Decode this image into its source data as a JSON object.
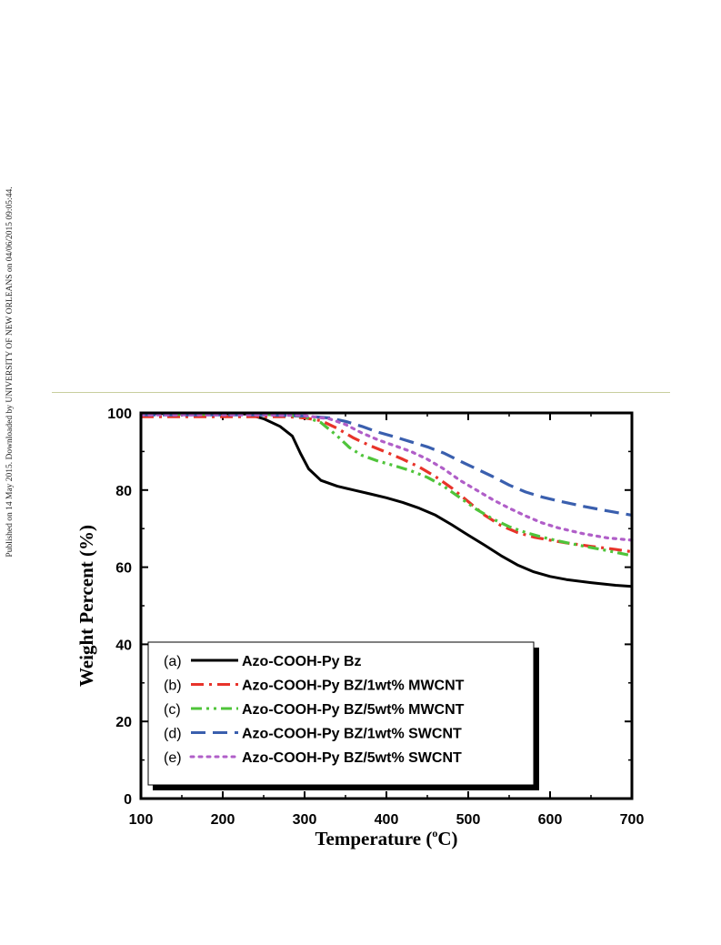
{
  "side_note": "Published on 14 May 2015. Downloaded by UNIVERSITY OF NEW ORLEANS on 04/06/2015 09:05:44.",
  "chart_data": {
    "type": "line",
    "xlabel_pre": "Temperature (",
    "xlabel_sup": "o",
    "xlabel_post": "C)",
    "ylabel": "Weight Percent (%)",
    "xlim": [
      100,
      700
    ],
    "ylim": [
      0,
      100
    ],
    "xticks": [
      100,
      200,
      300,
      400,
      500,
      600,
      700
    ],
    "yticks": [
      0,
      20,
      40,
      60,
      80,
      100
    ],
    "grid": false,
    "legend_position": "bottom-left",
    "series": [
      {
        "tag": "(a)",
        "name": "Azo-COOH-Py Bz",
        "color": "#000000",
        "dash": "solid",
        "x": [
          100,
          150,
          200,
          230,
          250,
          270,
          285,
          295,
          305,
          320,
          340,
          360,
          380,
          400,
          420,
          440,
          460,
          480,
          500,
          520,
          540,
          560,
          580,
          600,
          620,
          650,
          680,
          700
        ],
        "y": [
          99.8,
          99.8,
          99.8,
          99.7,
          98.5,
          96.5,
          94,
          89.5,
          85.5,
          82.5,
          81,
          80,
          79,
          78,
          76.8,
          75.3,
          73.5,
          71,
          68.3,
          65.7,
          63,
          60.6,
          58.8,
          57.6,
          56.8,
          56,
          55.3,
          55
        ]
      },
      {
        "tag": "(b)",
        "name": "Azo-COOH-Py BZ/1wt% MWCNT",
        "color": "#e8332a",
        "dash": "dashdot",
        "x": [
          100,
          150,
          200,
          250,
          280,
          300,
          320,
          340,
          360,
          380,
          400,
          420,
          440,
          460,
          480,
          500,
          520,
          540,
          560,
          580,
          600,
          620,
          650,
          680,
          700
        ],
        "y": [
          99,
          99,
          99,
          99,
          99,
          98.7,
          98,
          96,
          93.5,
          91.5,
          89.8,
          88,
          86,
          83.5,
          80.5,
          77,
          73.5,
          70.8,
          69,
          67.8,
          67,
          66.3,
          65.4,
          64.6,
          64
        ]
      },
      {
        "tag": "(c)",
        "name": "Azo-COOH-Py BZ/5wt% MWCNT",
        "color": "#4fc43a",
        "dash": "dashdotdot",
        "x": [
          100,
          150,
          200,
          250,
          280,
          300,
          320,
          340,
          355,
          370,
          390,
          410,
          430,
          450,
          470,
          490,
          510,
          530,
          550,
          570,
          590,
          610,
          640,
          670,
          700
        ],
        "y": [
          99.6,
          99.6,
          99.6,
          99.6,
          99.4,
          99,
          97.5,
          94,
          91,
          89,
          87.5,
          86.3,
          85,
          83.3,
          81,
          78,
          75,
          72.5,
          70.5,
          69,
          67.8,
          66.8,
          65.5,
          64.3,
          63
        ]
      },
      {
        "tag": "(d)",
        "name": "Azo-COOH-Py BZ/1wt% SWCNT",
        "color": "#3a5fae",
        "dash": "dash",
        "x": [
          100,
          150,
          200,
          250,
          300,
          330,
          350,
          370,
          390,
          410,
          430,
          450,
          470,
          490,
          510,
          530,
          550,
          570,
          590,
          610,
          640,
          670,
          700
        ],
        "y": [
          99.5,
          99.5,
          99.5,
          99.5,
          99.2,
          98.7,
          97.8,
          96.5,
          95,
          93.8,
          92.5,
          91.2,
          89.6,
          87.5,
          85.5,
          83.5,
          81.3,
          79.5,
          78.2,
          77.2,
          75.8,
          74.6,
          73.5
        ]
      },
      {
        "tag": "(e)",
        "name": "Azo-COOH-Py BZ/5wt% SWCNT",
        "color": "#b05ec8",
        "dash": "dot",
        "x": [
          100,
          150,
          200,
          250,
          300,
          330,
          350,
          370,
          390,
          410,
          430,
          450,
          470,
          490,
          510,
          530,
          550,
          570,
          590,
          610,
          640,
          670,
          700
        ],
        "y": [
          99.5,
          99.5,
          99.5,
          99.5,
          99.3,
          98.5,
          97,
          94.8,
          93,
          91.5,
          90,
          88,
          85.5,
          82.5,
          80,
          77.5,
          75.3,
          73.3,
          71.5,
          70.2,
          68.7,
          67.6,
          67
        ]
      }
    ]
  }
}
